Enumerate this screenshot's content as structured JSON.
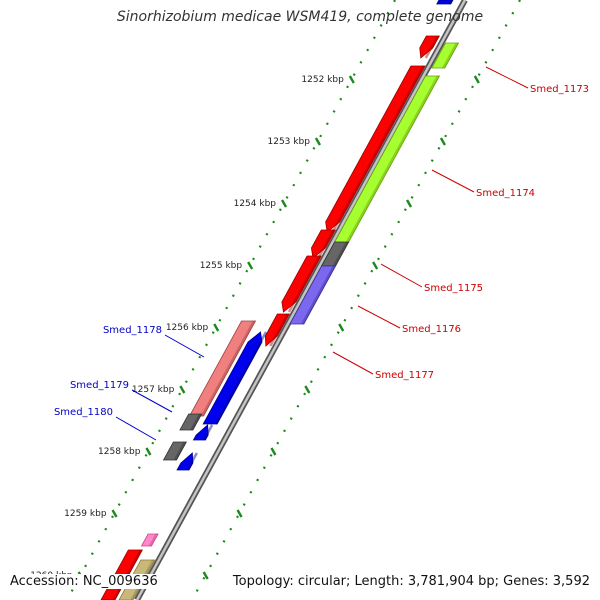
{
  "title": "Sinorhizobium medicae WSM419, complete genome",
  "footer": {
    "accession": "Accession: NC_009636",
    "stats": "Topology: circular; Length: 3,781,904 bp; Genes: 3,592"
  },
  "colors": {
    "forward_label": "#cc0000",
    "reverse_label": "#0000cc",
    "backbone": "#9a9a9a",
    "tick": "#1a8a1a"
  },
  "ticks": [
    {
      "label": "1252 kbp"
    },
    {
      "label": "1253 kbp"
    },
    {
      "label": "1254 kbp"
    },
    {
      "label": "1255 kbp"
    },
    {
      "label": "1256 kbp"
    },
    {
      "label": "1257 kbp"
    },
    {
      "label": "1258 kbp"
    },
    {
      "label": "1259 kbp"
    },
    {
      "label": "1260 kbp"
    }
  ],
  "gene_labels": [
    {
      "name": "Smed_1173",
      "strand": "forward"
    },
    {
      "name": "Smed_1174",
      "strand": "forward"
    },
    {
      "name": "Smed_1175",
      "strand": "forward"
    },
    {
      "name": "Smed_1176",
      "strand": "forward"
    },
    {
      "name": "Smed_1177",
      "strand": "forward"
    },
    {
      "name": "Smed_1178",
      "strand": "reverse"
    },
    {
      "name": "Smed_1179",
      "strand": "reverse"
    },
    {
      "name": "Smed_1180",
      "strand": "reverse"
    }
  ]
}
